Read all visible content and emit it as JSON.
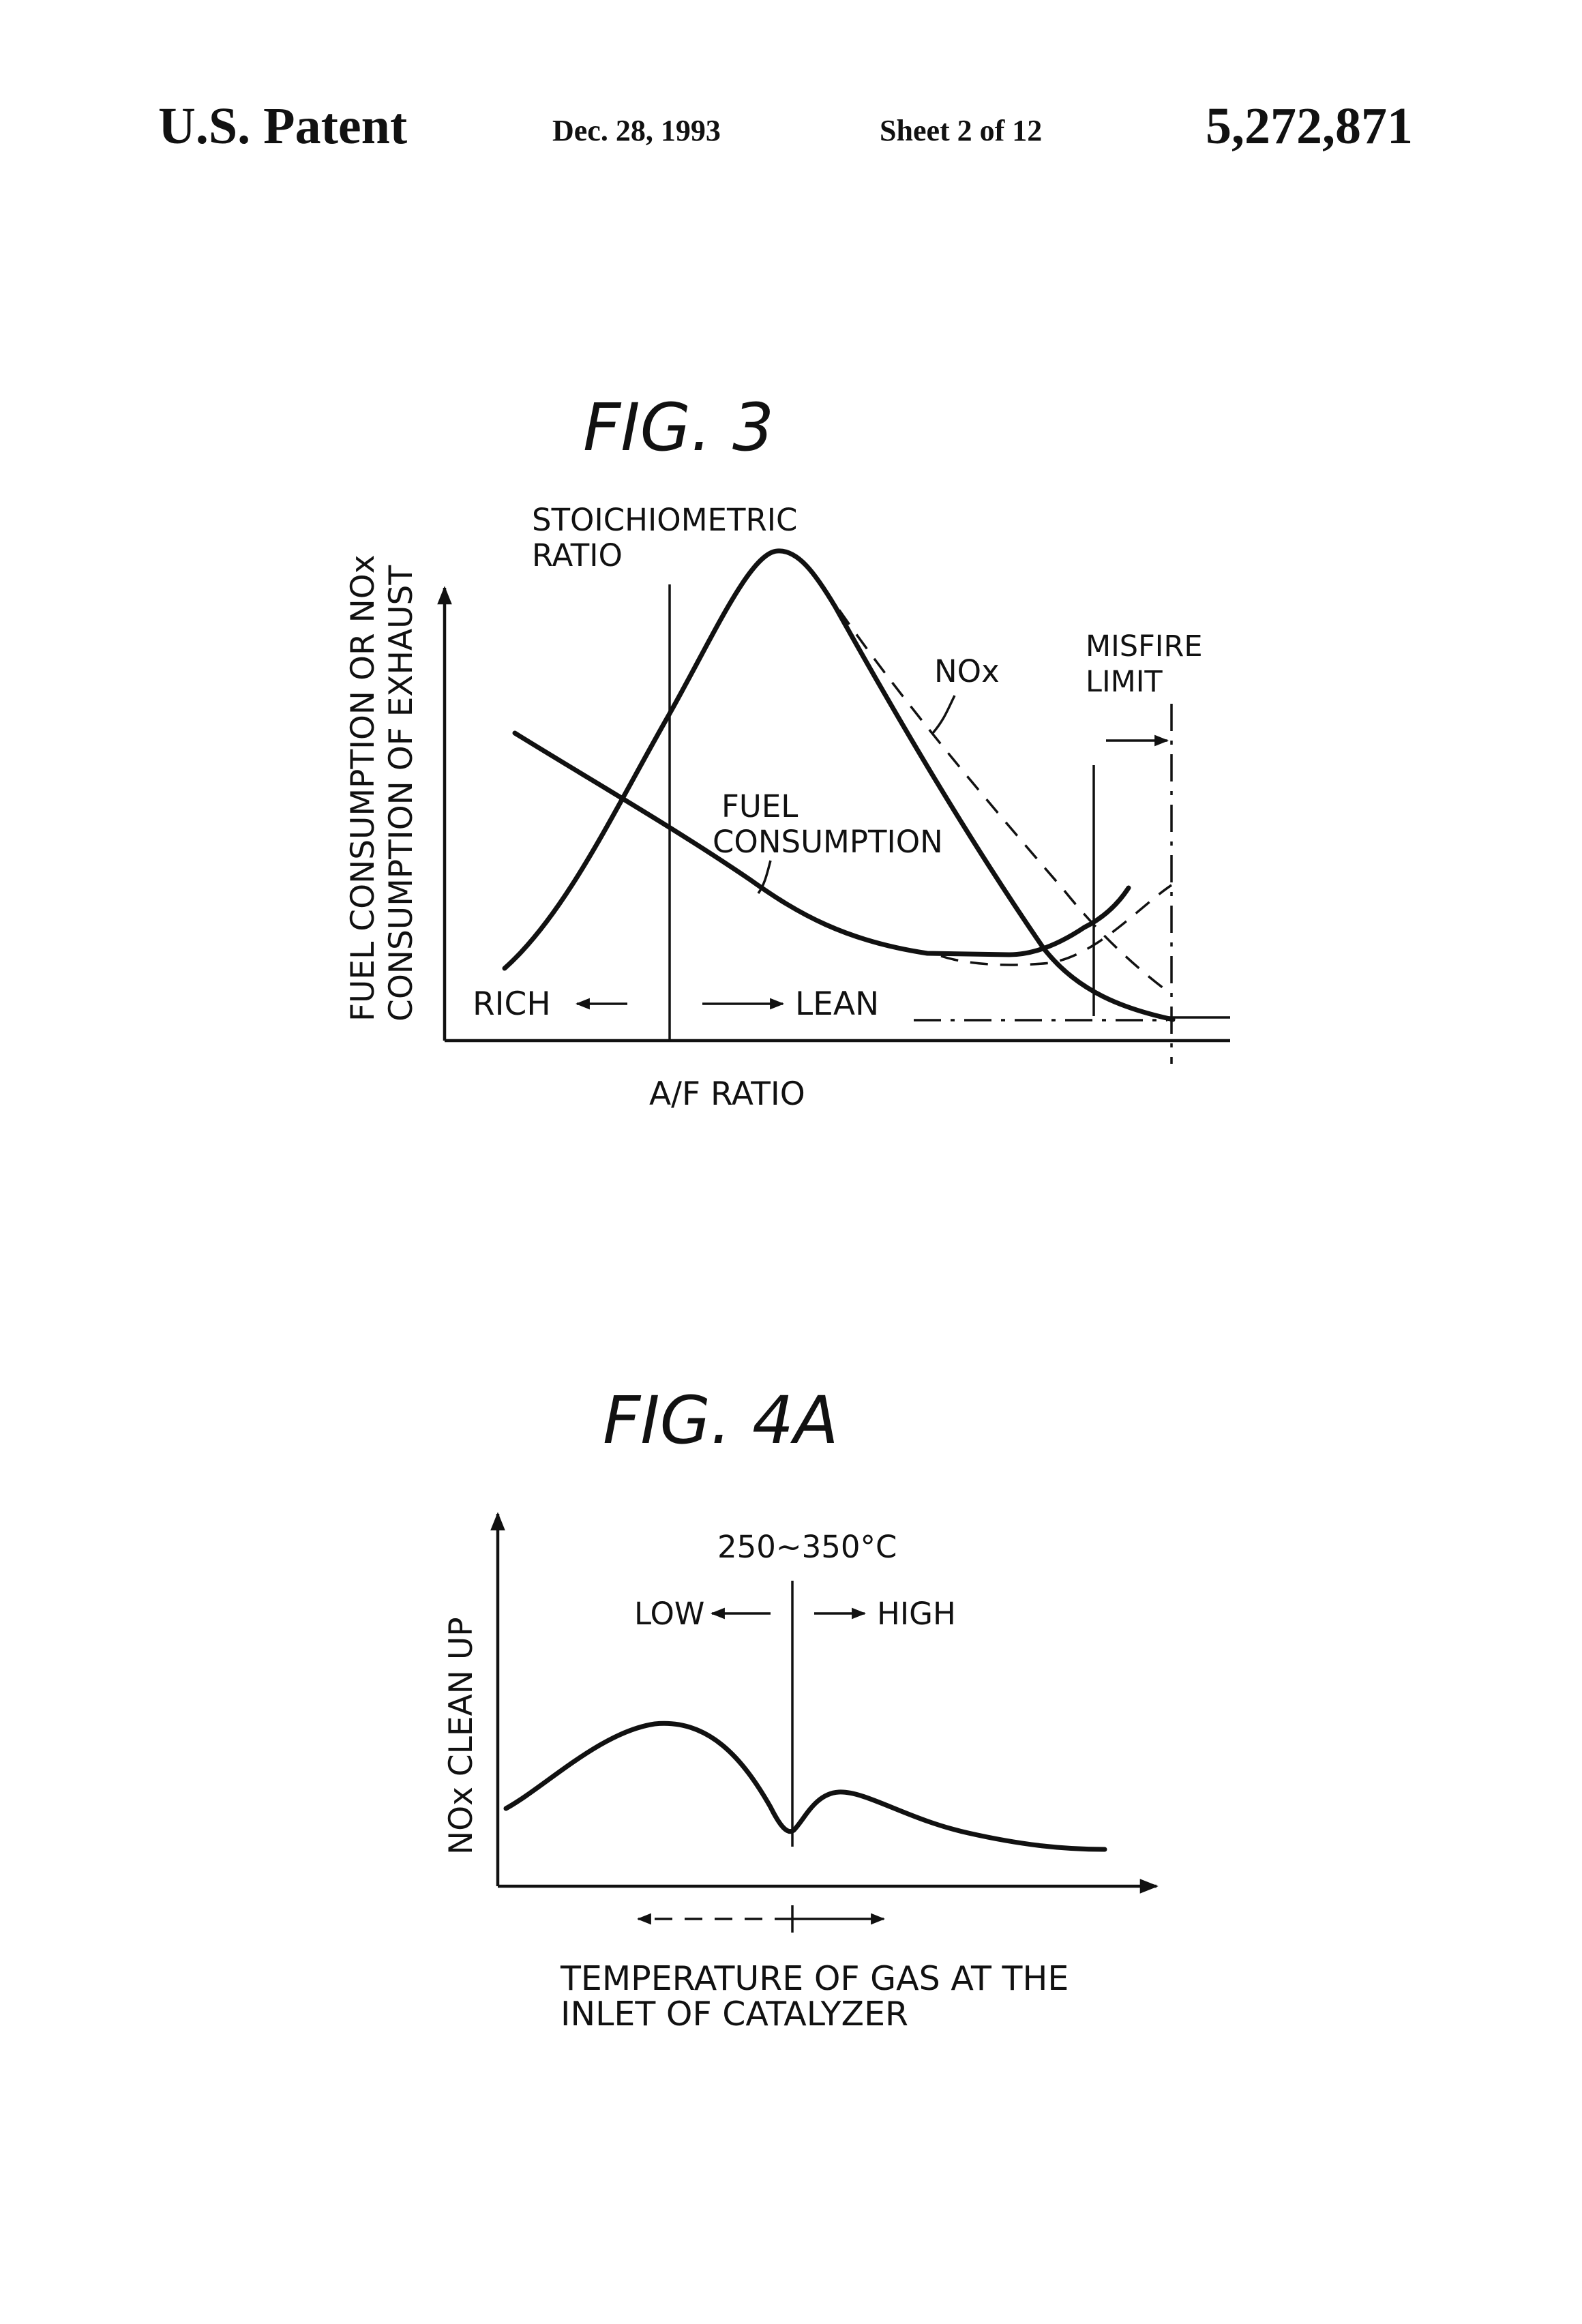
{
  "header": {
    "patent": "U.S. Patent",
    "date": "Dec. 28, 1993",
    "sheet": "Sheet 2 of 12",
    "number": "5,272,871"
  },
  "fig3": {
    "title": "FIG. 3",
    "ylabel_line1": "FUEL CONSUMPTION OR NOx",
    "ylabel_line2": "CONSUMPTION OF EXHAUST",
    "xlabel": "A/F RATIO",
    "stoich_line1": "STOICHIOMETRIC",
    "stoich_line2": "RATIO",
    "nox_label": "NOx",
    "misfire_line1": "MISFIRE",
    "misfire_line2": "LIMIT",
    "fuel_line1": "FUEL",
    "fuel_line2": "CONSUMPTION",
    "rich_label": "RICH",
    "lean_label": "LEAN"
  },
  "fig4a": {
    "title": "FIG. 4A",
    "ylabel": "NOx CLEAN UP",
    "temp_label": "250~350°C",
    "low_label": "LOW",
    "high_label": "HIGH",
    "xlabel_line1": "TEMPERATURE OF GAS AT THE",
    "xlabel_line2": "INLET OF CATALYZER"
  }
}
